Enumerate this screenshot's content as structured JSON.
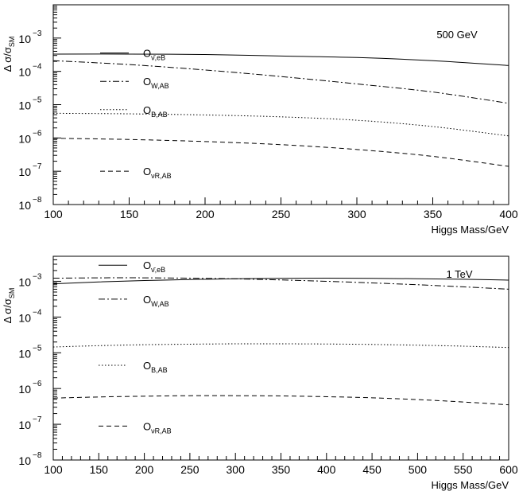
{
  "chart_data": [
    {
      "type": "line",
      "annotation": "500 GeV",
      "xlabel": "Higgs Mass/GeV",
      "ylabel": "Δ σ/σ",
      "ylabel_sub": "SM",
      "log_y": true,
      "xlim": [
        100,
        400
      ],
      "ylim_exp": [
        -8,
        -2
      ],
      "x_ticks": [
        100,
        150,
        200,
        250,
        300,
        350,
        400
      ],
      "y_tick_exps": [
        -8,
        -7,
        -6,
        -5,
        -4,
        -3
      ],
      "y_tick_base": "10",
      "y_tick_exp_labels": [
        "−8",
        "−7",
        "−6",
        "−5",
        "−4",
        "−3"
      ],
      "x": [
        100,
        150,
        200,
        250,
        300,
        350,
        400
      ],
      "series": [
        {
          "name": "O",
          "name_sub": "ν̄,eB",
          "dash": "solid",
          "values": [
            0.00033,
            0.00033,
            0.00032,
            0.00029,
            0.00026,
            0.00021,
            0.00015
          ],
          "legend_y_exp": -3.45
        },
        {
          "name": "O",
          "name_sub": "W,AB",
          "dash": "dashdot",
          "values": [
            0.00021,
            0.00016,
            0.00011,
            7e-05,
            4.2e-05,
            2.4e-05,
            1.1e-05
          ],
          "legend_y_exp": -4.3
        },
        {
          "name": "O",
          "name_sub": "B,AB",
          "dash": "dotted",
          "values": [
            5.5e-06,
            5.3e-06,
            4.9e-06,
            4.3e-06,
            3.4e-06,
            2.2e-06,
            1.15e-06
          ],
          "legend_y_exp": -5.15
        },
        {
          "name": "O",
          "name_sub": "νR,AB",
          "dash": "dashed",
          "values": [
            9.8e-07,
            9e-07,
            7.8e-07,
            6.3e-07,
            4.5e-07,
            2.8e-07,
            1.4e-07
          ],
          "legend_y_exp": -7.0
        }
      ]
    },
    {
      "type": "line",
      "annotation": "1 TeV",
      "xlabel": "Higgs Mass/GeV",
      "ylabel": "Δ σ/σ",
      "ylabel_sub": "SM",
      "log_y": true,
      "xlim": [
        100,
        600
      ],
      "ylim_exp": [
        -8,
        -2.3
      ],
      "x_ticks": [
        100,
        150,
        200,
        250,
        300,
        350,
        400,
        450,
        500,
        550,
        600
      ],
      "y_tick_exps": [
        -8,
        -7,
        -6,
        -5,
        -4,
        -3
      ],
      "y_tick_base": "10",
      "y_tick_exp_labels": [
        "−8",
        "−7",
        "−6",
        "−5",
        "−4",
        "−3"
      ],
      "x": [
        100,
        150,
        200,
        250,
        300,
        350,
        400,
        450,
        500,
        550,
        600
      ],
      "series": [
        {
          "name": "O",
          "name_sub": "ν̄,eB",
          "dash": "solid",
          "values": [
            0.00085,
            0.00096,
            0.00105,
            0.00112,
            0.00118,
            0.00121,
            0.00122,
            0.00121,
            0.00118,
            0.00114,
            0.00108
          ],
          "legend_y_exp": -2.55
        },
        {
          "name": "O",
          "name_sub": "W,AB",
          "dash": "dashdot",
          "values": [
            0.00122,
            0.00125,
            0.00125,
            0.00122,
            0.00117,
            0.00109,
            0.001,
            0.0009,
            0.0008,
            0.0007,
            0.0006
          ],
          "legend_y_exp": -3.5
        },
        {
          "name": "O",
          "name_sub": "B,AB",
          "dash": "dotted",
          "values": [
            1.45e-05,
            1.58e-05,
            1.68e-05,
            1.74e-05,
            1.78e-05,
            1.78e-05,
            1.76e-05,
            1.71e-05,
            1.63e-05,
            1.53e-05,
            1.4e-05
          ],
          "legend_y_exp": -5.35
        },
        {
          "name": "O",
          "name_sub": "νR,AB",
          "dash": "dashed",
          "values": [
            5.4e-07,
            5.8e-07,
            6.1e-07,
            6.3e-07,
            6.3e-07,
            6.2e-07,
            5.9e-07,
            5.5e-07,
            4.9e-07,
            4.2e-07,
            3.5e-07
          ],
          "legend_y_exp": -7.05
        }
      ]
    }
  ]
}
